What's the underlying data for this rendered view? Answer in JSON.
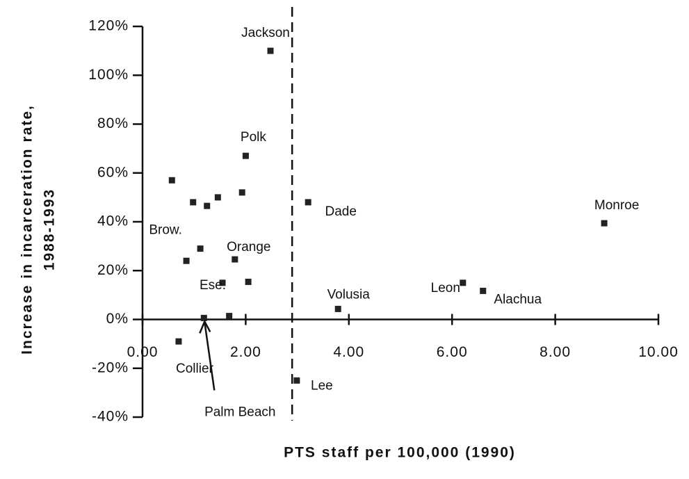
{
  "chart_data": {
    "type": "scatter",
    "xlabel": "PTS staff per 100,000 (1990)",
    "ylabel": [
      "Increase in incarceration rate,",
      "1988-1993"
    ],
    "x": [
      2.48,
      2.0,
      0.57,
      0.98,
      1.25,
      1.46,
      1.93,
      3.21,
      8.95,
      1.12,
      0.85,
      1.79,
      1.55,
      2.05,
      3.79,
      6.21,
      6.6,
      1.19,
      1.68,
      0.7,
      2.99
    ],
    "values": [
      110,
      67,
      57,
      48,
      46.5,
      50,
      52,
      48,
      39.4,
      29,
      24,
      24.6,
      15,
      15.4,
      4.3,
      15,
      11.7,
      0.6,
      1.4,
      -9,
      -25
    ],
    "labels": [
      "Jackson",
      "Polk",
      null,
      null,
      null,
      null,
      null,
      "Dade",
      "Monroe",
      "Brow.",
      null,
      "Orange",
      "Ese.",
      null,
      "Volusia",
      "Leon",
      "Alachua",
      "Palm Beach",
      null,
      "Collier",
      "Lee"
    ],
    "color": "#222222",
    "reference_line_x": 2.9,
    "xlim": [
      0,
      10
    ],
    "ylim": [
      -40,
      120
    ],
    "xticks": [
      {
        "value": 0,
        "label": "0.00"
      },
      {
        "value": 2,
        "label": "2.00"
      },
      {
        "value": 4,
        "label": "4.00"
      },
      {
        "value": 6,
        "label": "6.00"
      },
      {
        "value": 8,
        "label": "8.00"
      },
      {
        "value": 10,
        "label": "10.00"
      }
    ],
    "yticks": [
      {
        "value": -40,
        "label": "-40%"
      },
      {
        "value": -20,
        "label": "-20%"
      },
      {
        "value": 0,
        "label": "0%"
      },
      {
        "value": 20,
        "label": "20%"
      },
      {
        "value": 40,
        "label": "40%"
      },
      {
        "value": 60,
        "label": "60%"
      },
      {
        "value": 80,
        "label": "80%"
      },
      {
        "value": 100,
        "label": "100%"
      },
      {
        "value": 120,
        "label": "120%"
      }
    ]
  }
}
